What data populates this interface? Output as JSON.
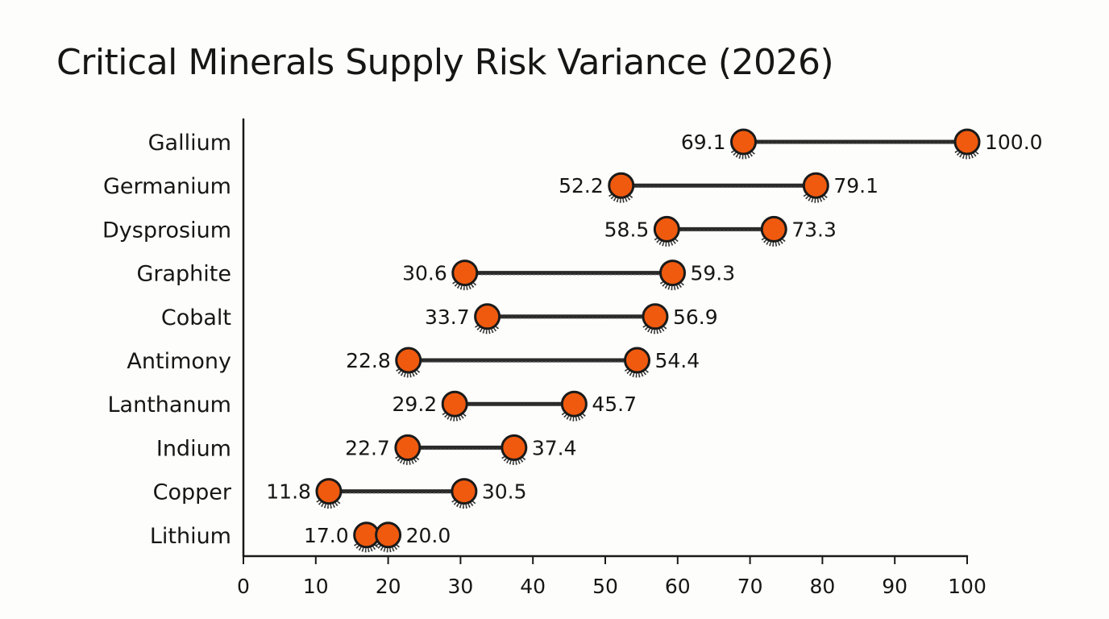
{
  "chart_data": {
    "type": "dumbbell",
    "title": "Critical Minerals Supply Risk Variance (2026)",
    "xlabel": "",
    "ylabel": "",
    "xlim": [
      0,
      100
    ],
    "xticks": [
      0,
      10,
      20,
      30,
      40,
      50,
      60,
      70,
      80,
      90,
      100
    ],
    "grid": false,
    "legend": "none",
    "colors": {
      "dot": "#f05a0e",
      "stroke": "#1a1a1a",
      "line": "#2a2a2a"
    },
    "categories": [
      "Gallium",
      "Germanium",
      "Dysprosium",
      "Graphite",
      "Cobalt",
      "Antimony",
      "Lanthanum",
      "Indium",
      "Copper",
      "Lithium"
    ],
    "low": [
      69.1,
      52.2,
      58.5,
      30.6,
      33.7,
      22.8,
      29.2,
      22.7,
      11.8,
      17.0
    ],
    "high": [
      100.0,
      79.1,
      73.3,
      59.3,
      56.9,
      54.4,
      45.7,
      37.4,
      30.5,
      20.0
    ],
    "low_labels": [
      "69.1",
      "52.2",
      "58.5",
      "30.6",
      "33.7",
      "22.8",
      "29.2",
      "22.7",
      "11.8",
      "17.0"
    ],
    "high_labels": [
      "100.0",
      "79.1",
      "73.3",
      "59.3",
      "56.9",
      "54.4",
      "45.7",
      "37.4",
      "30.5",
      "20.0"
    ]
  }
}
